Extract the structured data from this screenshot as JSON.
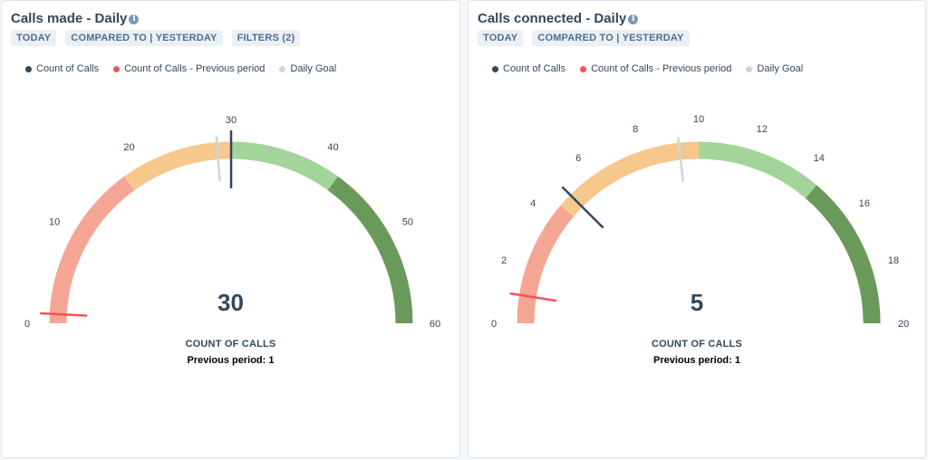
{
  "colors": {
    "count_of_calls": "#33475b",
    "previous_period": "#f2545b",
    "daily_goal": "#cbd6e2",
    "band_low": "#f5a594",
    "band_mid": "#f6c88c",
    "band_high": "#a3d49a",
    "band_top": "#6a9a5a"
  },
  "cards": [
    {
      "title": "Calls made - Daily",
      "tags": [
        "TODAY",
        "COMPARED TO | YESTERDAY",
        "FILTERS (2)"
      ],
      "legend": [
        "Count of Calls",
        "Count of Calls - Previous period",
        "Daily Goal"
      ],
      "value_text": "30",
      "metric_label": "COUNT OF CALLS",
      "previous_text": "Previous period: 1"
    },
    {
      "title": "Calls connected - Daily",
      "tags": [
        "TODAY",
        "COMPARED TO | YESTERDAY"
      ],
      "legend": [
        "Count of Calls",
        "Count of Calls - Previous period",
        "Daily Goal"
      ],
      "value_text": "5",
      "metric_label": "COUNT OF CALLS",
      "previous_text": "Previous period: 1"
    }
  ],
  "chart_data": [
    {
      "type": "gauge",
      "title": "Calls made - Daily",
      "min": 0,
      "max": 60,
      "ticks": [
        0,
        10,
        20,
        30,
        40,
        50,
        60
      ],
      "bands": [
        {
          "from": 0,
          "to": 18,
          "color": "#f5a594"
        },
        {
          "from": 18,
          "to": 30,
          "color": "#f6c88c"
        },
        {
          "from": 30,
          "to": 42,
          "color": "#a3d49a"
        },
        {
          "from": 42,
          "to": 60,
          "color": "#6a9a5a"
        }
      ],
      "series": [
        {
          "name": "Count of Calls",
          "value": 30
        },
        {
          "name": "Count of Calls - Previous period",
          "value": 1
        },
        {
          "name": "Daily Goal",
          "value": 28.5
        }
      ]
    },
    {
      "type": "gauge",
      "title": "Calls connected - Daily",
      "min": 0,
      "max": 20,
      "ticks": [
        0,
        2,
        4,
        6,
        8,
        10,
        12,
        14,
        16,
        18,
        20
      ],
      "bands": [
        {
          "from": 0,
          "to": 4.5,
          "color": "#f5a594"
        },
        {
          "from": 4.5,
          "to": 10,
          "color": "#f6c88c"
        },
        {
          "from": 10,
          "to": 14.5,
          "color": "#a3d49a"
        },
        {
          "from": 14.5,
          "to": 20,
          "color": "#6a9a5a"
        }
      ],
      "series": [
        {
          "name": "Count of Calls",
          "value": 5
        },
        {
          "name": "Count of Calls - Previous period",
          "value": 1
        },
        {
          "name": "Daily Goal",
          "value": 9.3
        }
      ]
    }
  ]
}
